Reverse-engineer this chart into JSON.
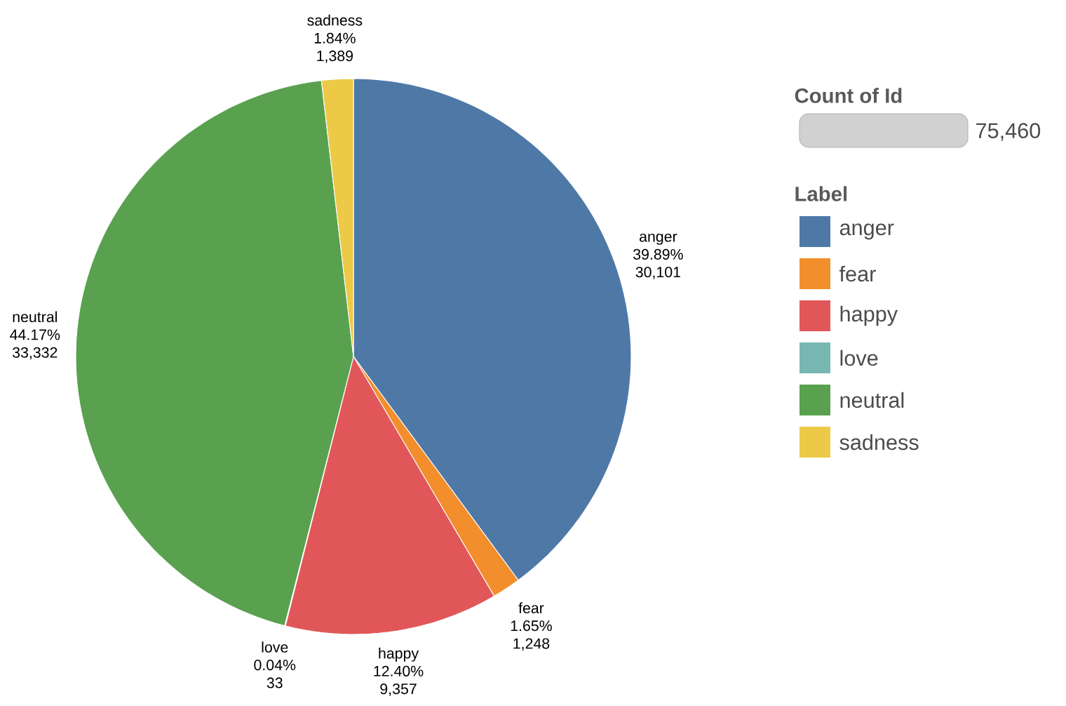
{
  "chart_data": {
    "type": "pie",
    "categories": [
      "anger",
      "fear",
      "happy",
      "love",
      "neutral",
      "sadness"
    ],
    "values": [
      30101,
      1248,
      9357,
      33,
      33332,
      1389
    ],
    "value_labels": [
      "30,101",
      "1,248",
      "9,357",
      "33",
      "33,332",
      "1,389"
    ],
    "colors": [
      "#4e79a7",
      "#f28e2b",
      "#e15759",
      "#76b7b2",
      "#59a14f",
      "#edc948"
    ],
    "legend": "right",
    "legend_title": "Label",
    "annotations": [
      "Count of Id",
      "75,460",
      {
        "text": "39.89%",
        "x": "anger"
      },
      {
        "text": "1.65%",
        "x": "fear"
      },
      {
        "text": "12.40%",
        "x": "happy"
      },
      {
        "text": "0.04%",
        "x": "love"
      },
      {
        "text": "44.17%",
        "x": "neutral"
      },
      {
        "text": "1.84%",
        "x": "sadness"
      }
    ]
  }
}
